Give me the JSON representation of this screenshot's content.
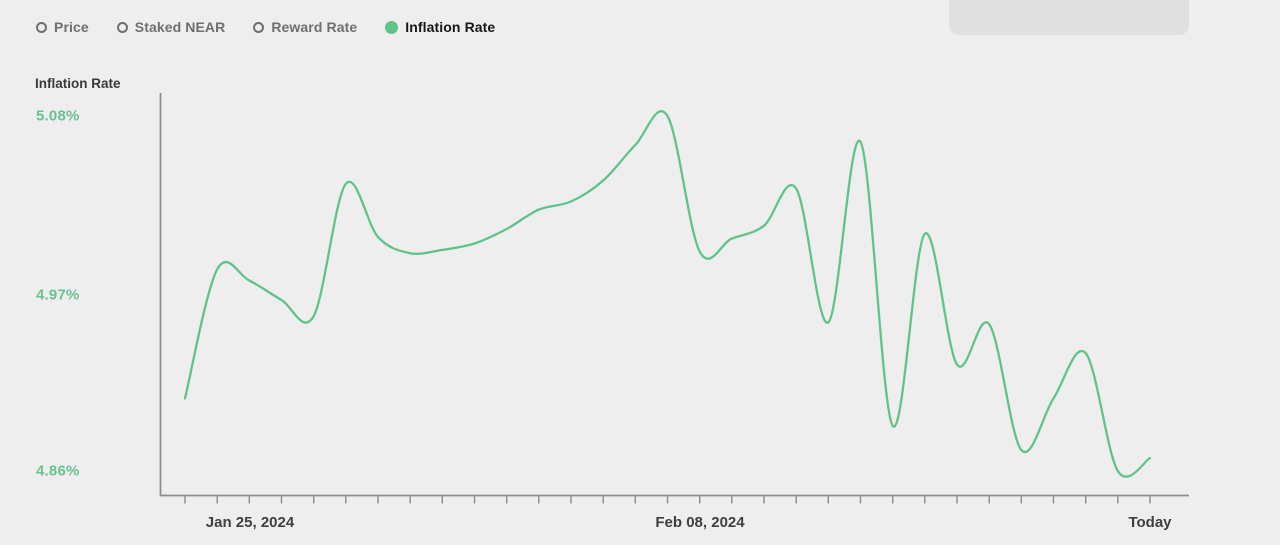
{
  "header": {
    "legend_items": [
      {
        "label": "Price",
        "selected": false
      },
      {
        "label": "Staked NEAR",
        "selected": false
      },
      {
        "label": "Reward Rate",
        "selected": false
      },
      {
        "label": "Inflation Rate",
        "selected": true
      }
    ]
  },
  "chart": {
    "title": "Inflation Rate"
  },
  "chart_data": {
    "type": "line",
    "title": "Inflation Rate",
    "series_name": "Inflation Rate",
    "unit": "percent",
    "x": [
      0,
      1,
      2,
      3,
      4,
      5,
      6,
      7,
      8,
      9,
      10,
      11,
      12,
      13,
      14,
      15,
      16,
      17,
      18,
      19,
      20,
      21,
      22,
      23,
      24,
      25,
      26,
      27,
      28,
      29,
      30
    ],
    "values": [
      4.905,
      4.985,
      4.978,
      4.966,
      4.956,
      5.038,
      5.005,
      4.995,
      4.997,
      5.001,
      5.01,
      5.022,
      5.027,
      5.04,
      5.062,
      5.08,
      4.996,
      5.004,
      5.012,
      5.035,
      4.952,
      5.064,
      4.888,
      5.007,
      4.926,
      4.951,
      4.873,
      4.905,
      4.933,
      4.86,
      4.868
    ],
    "x_tick_count": 31,
    "x_tick_labels": [
      {
        "label": "Jan 25, 2024",
        "index": 2
      },
      {
        "label": "Feb 08, 2024",
        "index": 16
      },
      {
        "label": "Today",
        "index": 30
      }
    ],
    "y_tick_labels": [
      "5.08%",
      "4.97%",
      "4.86%"
    ],
    "y_tick_values": [
      5.08,
      4.97,
      4.86
    ],
    "ylim": [
      4.86,
      5.08
    ],
    "grid": false,
    "legend_position": "top-left",
    "smooth": true
  },
  "colors": {
    "background": "#eeeeee",
    "line": "#61c28b",
    "legend_dot": "#61c28b",
    "y_label": "#68c191",
    "axis": "#8c8c8c",
    "placeholder_box": "#e0e0e0"
  }
}
